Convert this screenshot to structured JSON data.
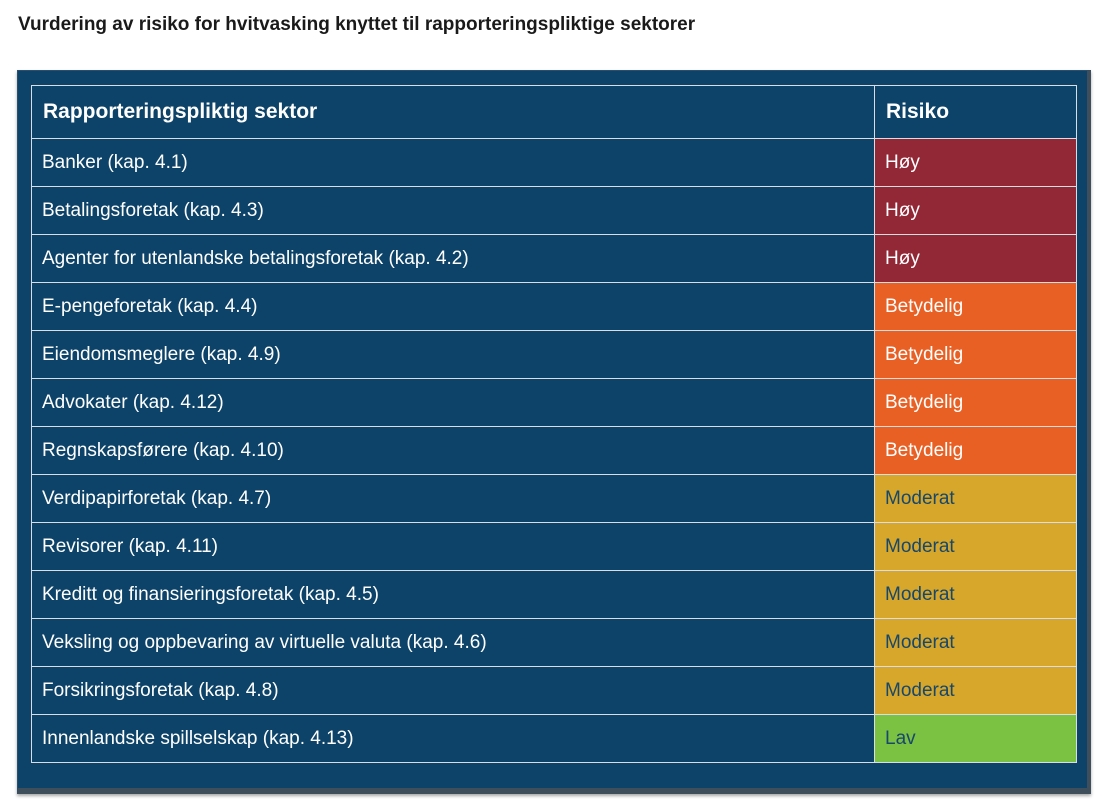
{
  "title": "Vurdering av risiko for hvitvasking knyttet til rapporteringspliktige sektorer",
  "table": {
    "headers": [
      "Rapporteringspliktig sektor",
      "Risiko"
    ],
    "rows": [
      {
        "sector": "Banker (kap. 4.1)",
        "risk": "Høy",
        "level": "hoy"
      },
      {
        "sector": "Betalingsforetak (kap. 4.3)",
        "risk": "Høy",
        "level": "hoy"
      },
      {
        "sector": "Agenter for utenlandske betalingsforetak (kap. 4.2)",
        "risk": "Høy",
        "level": "hoy"
      },
      {
        "sector": "E-pengeforetak (kap. 4.4)",
        "risk": "Betydelig",
        "level": "bet"
      },
      {
        "sector": "Eiendomsmeglere (kap. 4.9)",
        "risk": "Betydelig",
        "level": "bet"
      },
      {
        "sector": "Advokater (kap. 4.12)",
        "risk": "Betydelig",
        "level": "bet"
      },
      {
        "sector": "Regnskapsførere (kap. 4.10)",
        "risk": "Betydelig",
        "level": "bet"
      },
      {
        "sector": "Verdipapirforetak (kap. 4.7)",
        "risk": "Moderat",
        "level": "mod"
      },
      {
        "sector": "Revisorer (kap. 4.11)",
        "risk": "Moderat",
        "level": "mod"
      },
      {
        "sector": "Kreditt og finansieringsforetak (kap. 4.5)",
        "risk": "Moderat",
        "level": "mod"
      },
      {
        "sector": "Veksling og oppbevaring av virtuelle valuta (kap. 4.6)",
        "risk": "Moderat",
        "level": "mod"
      },
      {
        "sector": "Forsikringsforetak (kap. 4.8)",
        "risk": "Moderat",
        "level": "mod"
      },
      {
        "sector": "Innenlandske spillselskap (kap. 4.13)",
        "risk": "Lav",
        "level": "lav"
      }
    ]
  },
  "colors": {
    "background_navy": "#0d4368",
    "hoy": "#922736",
    "betydelig": "#e96024",
    "moderat": "#d6a72a",
    "lav": "#7cc242"
  }
}
